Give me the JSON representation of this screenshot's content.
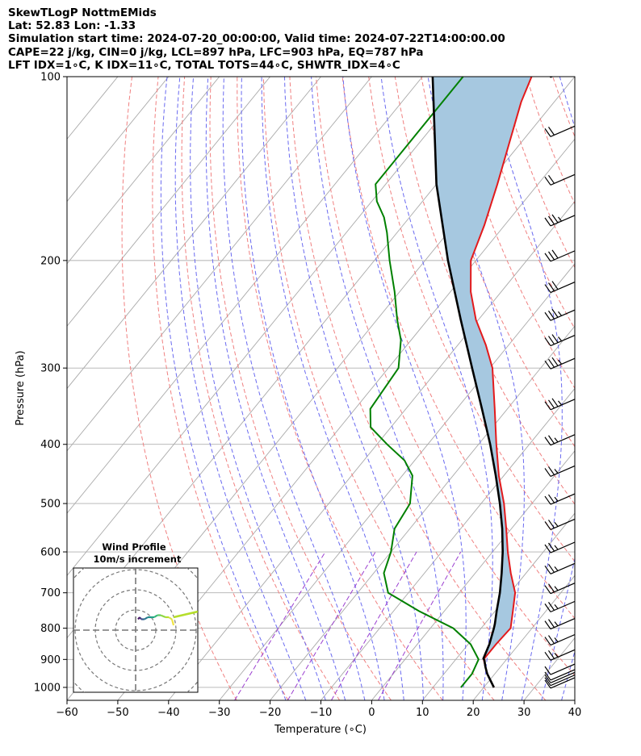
{
  "header": {
    "line1": "SkewTLogP NottmEMids",
    "line2": "Lat: 52.83   Lon: -1.33",
    "line3": "Simulation start time: 2024-07-20_00:00:00, Valid time: 2024-07-22T14:00:00.00",
    "line4": "CAPE=22 j/kg, CIN=0 j/kg, LCL=897 hPa, LFC=903 hPa, EQ=787 hPa",
    "line5": "LFT IDX=1∘C, K IDX=11∘C, TOTAL TOTS=44∘C, SHWTR_IDX=4∘C"
  },
  "chart_data": {
    "type": "line",
    "chart": "skew-t log-p",
    "xlabel": "Temperature (∘C)",
    "ylabel": "Pressure (hPa)",
    "xlim": [
      -60,
      40
    ],
    "ylim": [
      1050,
      100
    ],
    "y_scale": "log",
    "grid": true,
    "x_ticks": [
      "−60",
      "−50",
      "−40",
      "−30",
      "−20",
      "−10",
      "0",
      "10",
      "20",
      "30",
      "40"
    ],
    "y_ticks": [
      "100",
      "200",
      "300",
      "400",
      "500",
      "600",
      "700",
      "800",
      "900",
      "1000"
    ],
    "colors": {
      "temperature": "#e31a1c",
      "dewpoint": "#008000",
      "parcel": "#000000",
      "cape_fill": "#a6c8e0",
      "dry_adiabat": "#f08080",
      "moist_adiabat": "#6a6af0",
      "mixing_ratio": "#9b3fd0",
      "isotherm": "#a9a9a9"
    },
    "series": [
      {
        "pressure": [
          1000,
          950,
          925,
          900,
          850,
          800,
          750,
          700,
          650,
          600,
          550,
          500,
          450,
          400,
          350,
          300,
          275,
          250,
          225,
          200,
          175,
          150,
          125,
          110,
          100
        ],
        "temperature": [
          22,
          18.5,
          17,
          15.5,
          15.5,
          15.8,
          13.5,
          11,
          7,
          3,
          -1,
          -5.5,
          -11,
          -16.5,
          -22.5,
          -29.5,
          -34.5,
          -40.5,
          -46,
          -51,
          -54,
          -58,
          -63,
          -66.5,
          -68.5
        ]
      },
      {
        "pressure": [
          1000,
          950,
          900,
          850,
          800,
          750,
          700,
          650,
          600,
          550,
          500,
          450,
          425,
          400,
          375,
          350,
          300,
          270,
          250,
          225,
          200,
          180,
          170,
          160,
          150,
          125,
          100
        ],
        "dewpoint": [
          15.5,
          15.5,
          14.5,
          10.5,
          4.5,
          -5,
          -14,
          -18,
          -20,
          -23,
          -24,
          -28,
          -32,
          -38,
          -44,
          -47,
          -48,
          -52,
          -56,
          -61,
          -67,
          -72,
          -75,
          -79,
          -82,
          -82,
          -82
        ]
      },
      {
        "pressure": [
          1000,
          950,
          925,
          903,
          897,
          850,
          800,
          787,
          750,
          700,
          650,
          600,
          550,
          500,
          450,
          400,
          350,
          300,
          250,
          200,
          150,
          100
        ],
        "parcel": [
          22,
          18.5,
          17,
          15.8,
          15.3,
          14.2,
          12.5,
          12,
          10.3,
          8,
          5.2,
          2,
          -1.8,
          -6.3,
          -11.6,
          -17.7,
          -25,
          -33.5,
          -43.5,
          -55.5,
          -70,
          -88
        ]
      }
    ],
    "cape_fill_label": "",
    "hodograph": {
      "title": "Wind Profile",
      "subtitle": "10m/s increment",
      "ring_step_ms": 10,
      "u": [
        7,
        6,
        4,
        2,
        -1,
        -3,
        -5,
        -7,
        -9,
        -11,
        -12,
        -13,
        -14,
        -14,
        -15
      ],
      "v": [
        -4,
        -1,
        0,
        0,
        1,
        1,
        0,
        0,
        0,
        -1,
        -1,
        -1,
        0,
        0,
        -1
      ]
    },
    "wind_barbs": {
      "pressure": [
        1000,
        990,
        980,
        970,
        950,
        900,
        850,
        800,
        750,
        700,
        650,
        600,
        550,
        500,
        450,
        400,
        350,
        300,
        275,
        250,
        225,
        200,
        175,
        150,
        125,
        100
      ],
      "speed_kt": [
        10,
        10,
        10,
        10,
        10,
        15,
        15,
        15,
        15,
        15,
        15,
        15,
        15,
        15,
        15,
        15,
        25,
        25,
        25,
        25,
        30,
        30,
        25,
        20,
        20,
        20
      ],
      "direction_deg": [
        250,
        250,
        255,
        255,
        255,
        255,
        260,
        260,
        260,
        260,
        260,
        260,
        265,
        265,
        265,
        265,
        265,
        265,
        265,
        265,
        265,
        265,
        265,
        265,
        265,
        265
      ]
    }
  }
}
